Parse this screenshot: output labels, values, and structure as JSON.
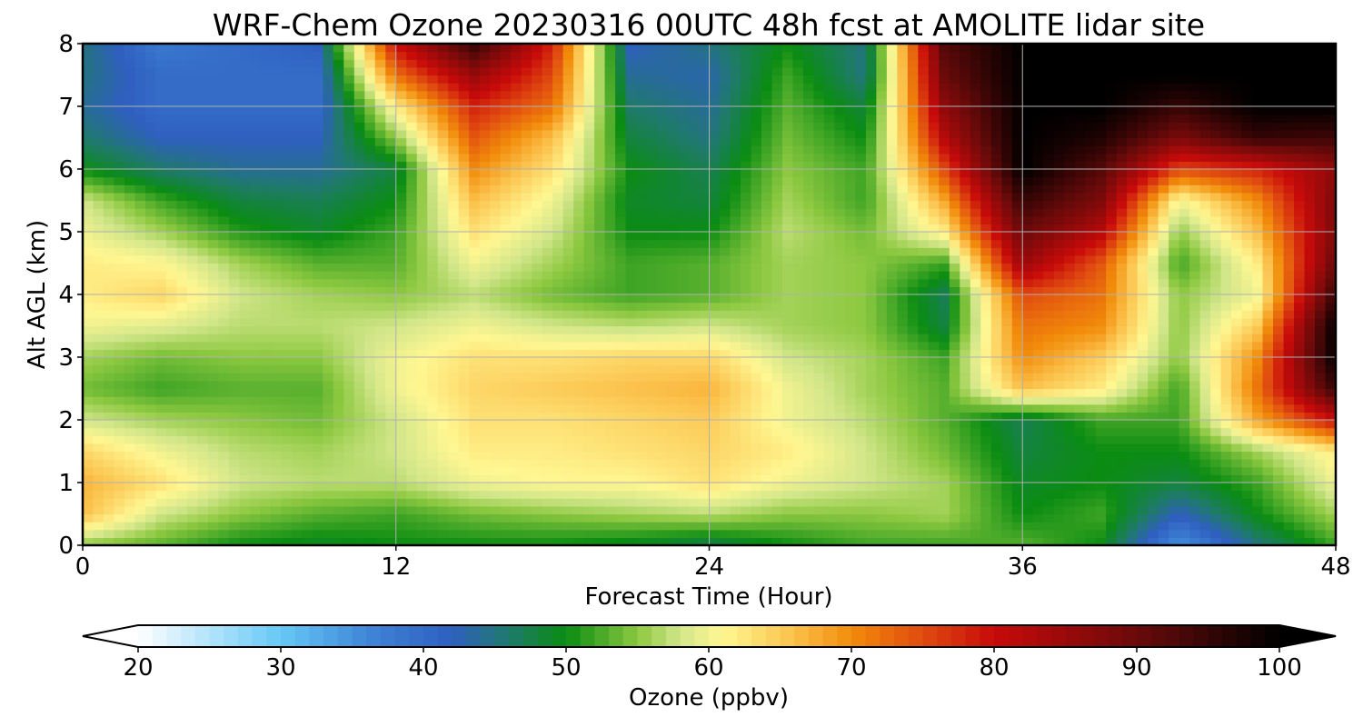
{
  "chart_data": {
    "type": "heatmap",
    "title": "WRF-Chem Ozone  20230316 00UTC 48h fcst at AMOLITE lidar site",
    "xlabel": "Forecast Time (Hour)",
    "ylabel": "Alt AGL (km)",
    "xlim": [
      0,
      48
    ],
    "ylim": [
      0,
      8
    ],
    "xticks": [
      "0",
      "12",
      "24",
      "36",
      "48"
    ],
    "yticks": [
      "0",
      "1",
      "2",
      "3",
      "4",
      "5",
      "6",
      "7",
      "8"
    ],
    "grid": true,
    "x_hours": [
      0,
      3,
      6,
      9,
      12,
      15,
      18,
      21,
      24,
      27,
      30,
      33,
      36,
      39,
      42,
      45,
      48
    ],
    "y_km": [
      0,
      0.5,
      1,
      1.5,
      2,
      2.5,
      3,
      3.5,
      4,
      4.5,
      5,
      5.5,
      6,
      6.5,
      7,
      7.5,
      8
    ],
    "ozone_ppbv": [
      [
        55,
        53,
        50,
        49,
        50,
        50,
        50,
        49,
        47,
        50,
        52,
        52,
        53,
        50,
        35,
        45,
        52
      ],
      [
        66,
        58,
        55,
        53,
        52,
        54,
        55,
        56,
        57,
        55,
        55,
        56,
        50,
        52,
        42,
        50,
        56
      ],
      [
        67,
        63,
        58,
        57,
        57,
        60,
        61,
        61,
        63,
        60,
        58,
        56,
        49,
        50,
        48,
        52,
        60
      ],
      [
        64,
        60,
        57,
        56,
        58,
        62,
        62,
        63,
        64,
        62,
        58,
        54,
        48,
        50,
        50,
        56,
        62
      ],
      [
        58,
        56,
        55,
        54,
        58,
        63,
        63,
        64,
        65,
        60,
        57,
        53,
        47,
        52,
        52,
        68,
        80
      ],
      [
        54,
        52,
        53,
        53,
        60,
        64,
        65,
        66,
        67,
        60,
        56,
        53,
        66,
        62,
        52,
        72,
        95
      ],
      [
        56,
        54,
        55,
        55,
        60,
        63,
        63,
        64,
        64,
        58,
        56,
        52,
        70,
        65,
        55,
        70,
        100
      ],
      [
        60,
        59,
        57,
        57,
        58,
        60,
        58,
        57,
        58,
        56,
        55,
        48,
        72,
        70,
        55,
        65,
        100
      ],
      [
        62,
        64,
        58,
        56,
        55,
        57,
        54,
        52,
        53,
        56,
        55,
        47,
        75,
        72,
        55,
        60,
        95
      ],
      [
        62,
        61,
        56,
        53,
        53,
        60,
        56,
        52,
        53,
        56,
        55,
        52,
        85,
        74,
        52,
        62,
        90
      ],
      [
        60,
        56,
        51,
        49,
        52,
        63,
        58,
        50,
        50,
        57,
        54,
        62,
        90,
        82,
        55,
        66,
        88
      ],
      [
        58,
        52,
        48,
        47,
        50,
        66,
        60,
        49,
        48,
        56,
        52,
        68,
        95,
        88,
        60,
        70,
        88
      ],
      [
        50,
        46,
        44,
        44,
        48,
        70,
        63,
        50,
        47,
        55,
        52,
        75,
        100,
        92,
        75,
        78,
        86
      ],
      [
        46,
        42,
        42,
        42,
        55,
        74,
        66,
        48,
        45,
        54,
        50,
        82,
        100,
        97,
        88,
        95,
        94
      ],
      [
        44,
        40,
        40,
        40,
        62,
        78,
        72,
        46,
        44,
        53,
        48,
        86,
        100,
        100,
        95,
        100,
        100
      ],
      [
        45,
        40,
        40,
        40,
        72,
        85,
        75,
        44,
        43,
        52,
        45,
        90,
        100,
        100,
        100,
        100,
        100
      ],
      [
        45,
        38,
        40,
        42,
        80,
        95,
        78,
        42,
        45,
        50,
        45,
        92,
        100,
        100,
        100,
        100,
        100
      ]
    ],
    "colorbar": {
      "label": "Ozone  (ppbv)",
      "min": 20,
      "max": 100,
      "ticks": [
        "20",
        "30",
        "40",
        "50",
        "60",
        "70",
        "80",
        "90",
        "100"
      ],
      "extend": "both",
      "stops": [
        {
          "v": 20,
          "c": "#ffffff"
        },
        {
          "v": 30,
          "c": "#66c8f5"
        },
        {
          "v": 36,
          "c": "#3f86d8"
        },
        {
          "v": 42,
          "c": "#2f5fc0"
        },
        {
          "v": 46,
          "c": "#1f7a6a"
        },
        {
          "v": 50,
          "c": "#0a8c12"
        },
        {
          "v": 55,
          "c": "#8cc840"
        },
        {
          "v": 58,
          "c": "#d2e68a"
        },
        {
          "v": 61,
          "c": "#fff792"
        },
        {
          "v": 66,
          "c": "#fbc04a"
        },
        {
          "v": 70,
          "c": "#f28c0a"
        },
        {
          "v": 75,
          "c": "#e04a10"
        },
        {
          "v": 80,
          "c": "#c80a0a"
        },
        {
          "v": 90,
          "c": "#6a0a0a"
        },
        {
          "v": 100,
          "c": "#000000"
        }
      ]
    }
  }
}
